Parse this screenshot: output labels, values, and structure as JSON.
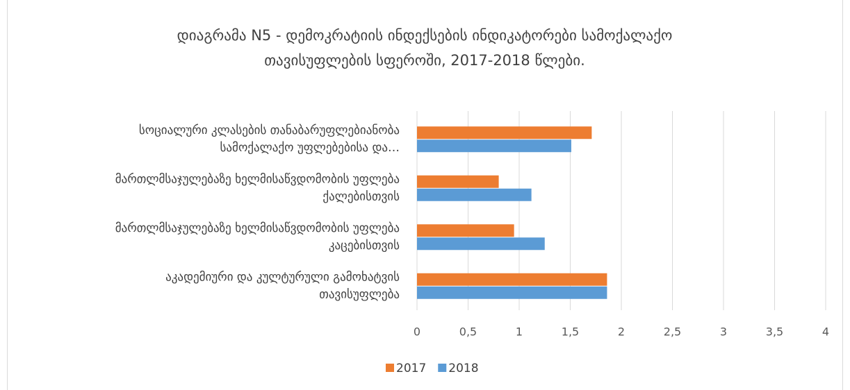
{
  "chart_data": {
    "type": "hbar",
    "title": [
      "დიაგრამა N5  - დემოკრატიის ინდექსების ინდიკატორები სამოქალაქო",
      "თავისუფლების სფეროში, 2017-2018 წლები."
    ],
    "categories": [
      [
        "სოციალური კლასების თანაბარუფლებიანობა",
        "სამოქალაქო უფლებებისა და…"
      ],
      [
        "მართლმსაჯულებაზე ხელმისაწვდომობის უფლება",
        "ქალებისთვის"
      ],
      [
        "მართლმსაჯულებაზე ხელმისაწვდომობის უფლება",
        "კაცებისთვის"
      ],
      [
        "აკადემიური და კულტურული გამოხატვის",
        "თავისუფლება"
      ]
    ],
    "series": [
      {
        "name": "2017",
        "color": "#ed7d31",
        "values": [
          1.71,
          0.8,
          0.95,
          1.86
        ]
      },
      {
        "name": "2018",
        "color": "#5b9bd5",
        "values": [
          1.51,
          1.12,
          1.25,
          1.86
        ]
      }
    ],
    "xlim": [
      0,
      4
    ],
    "xticks": [
      0,
      {
        "value": 0.5,
        "label": "0,5"
      },
      1,
      {
        "value": 1.5,
        "label": "1,5"
      },
      2,
      {
        "value": 2.5,
        "label": "2,5"
      },
      3,
      {
        "value": 3.5,
        "label": "3,5"
      },
      4
    ],
    "grid": true,
    "legend": "bottom"
  }
}
